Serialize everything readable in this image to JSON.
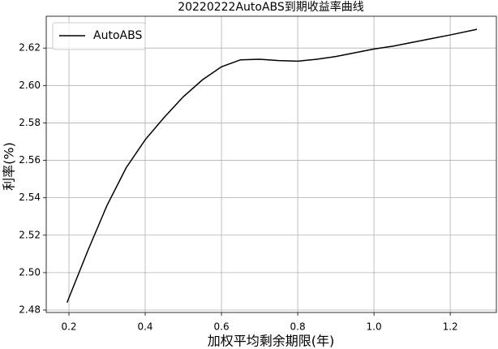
{
  "chart_data": {
    "type": "line",
    "title": "20220222AutoABS到期收益率曲线",
    "xlabel": "加权平均剩余期限(年)",
    "ylabel": "利率(%)",
    "x": [
      0.195,
      0.25,
      0.3,
      0.35,
      0.4,
      0.45,
      0.5,
      0.55,
      0.6,
      0.65,
      0.7,
      0.75,
      0.8,
      0.85,
      0.9,
      0.95,
      1.0,
      1.05,
      1.1,
      1.15,
      1.2,
      1.27
    ],
    "series": [
      {
        "name": "AutoABS",
        "color": "#000000",
        "values": [
          2.484,
          2.512,
          2.536,
          2.556,
          2.571,
          2.583,
          2.594,
          2.603,
          2.61,
          2.6137,
          2.614,
          2.6133,
          2.613,
          2.614,
          2.6155,
          2.6175,
          2.6195,
          2.621,
          2.623,
          2.625,
          2.627,
          2.63
        ]
      }
    ],
    "xlim": [
      0.1404,
      1.321
    ],
    "ylim": [
      2.4787,
      2.637
    ],
    "xticks": [
      0.2,
      0.4,
      0.6,
      0.8,
      {
        "value": 1.0,
        "label": "1.0"
      },
      1.2
    ],
    "yticks": [
      2.48,
      {
        "value": 2.5,
        "label": "2.50"
      },
      2.52,
      2.54,
      2.56,
      2.58,
      {
        "value": 2.6,
        "label": "2.60"
      },
      2.62
    ],
    "grid": true,
    "legend": "upper left"
  }
}
